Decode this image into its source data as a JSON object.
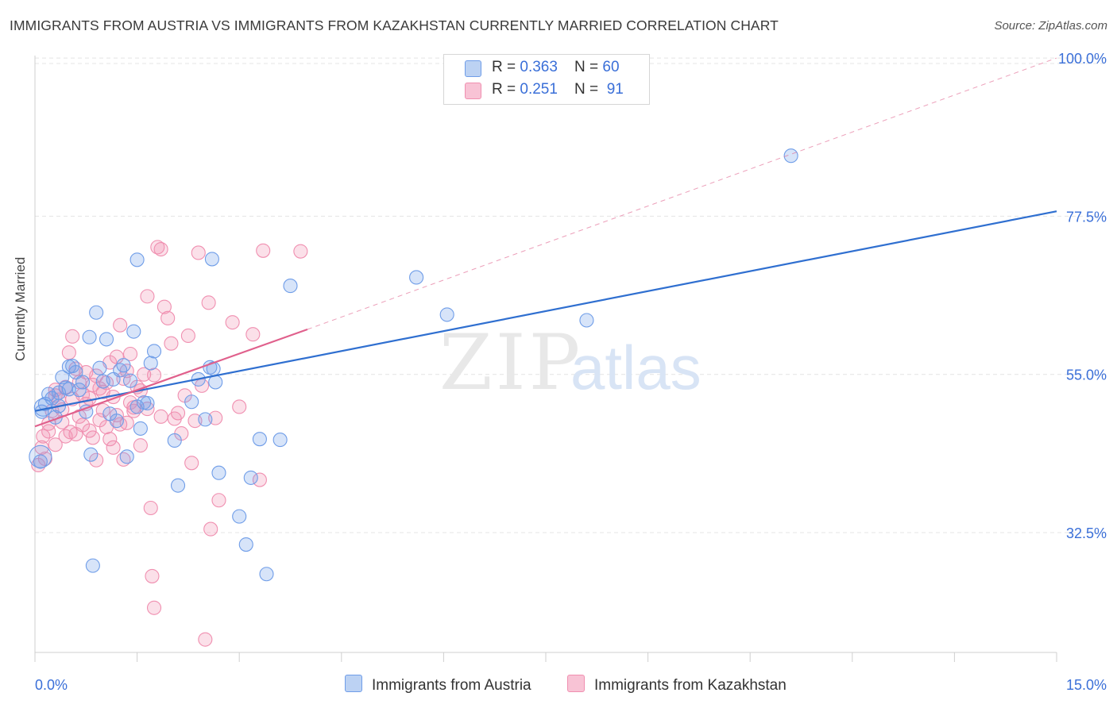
{
  "title": "IMMIGRANTS FROM AUSTRIA VS IMMIGRANTS FROM KAZAKHSTAN CURRENTLY MARRIED CORRELATION CHART",
  "source": "Source: ZipAtlas.com",
  "watermark": {
    "zip": "ZIP",
    "atlas": "atlas"
  },
  "legend": {
    "austria": {
      "r_label": "R = ",
      "r_value": "0.363",
      "n_label": "N = ",
      "n_value": "60"
    },
    "kazakhstan": {
      "r_label": "R = ",
      "r_value": "0.251",
      "n_label": "N = ",
      "n_value": "91"
    }
  },
  "chart_data": {
    "type": "scatter",
    "title": "IMMIGRANTS FROM AUSTRIA VS IMMIGRANTS FROM KAZAKHSTAN CURRENTLY MARRIED CORRELATION CHART",
    "xlabel": "",
    "ylabel": "Currently Married",
    "xlim": [
      0,
      15
    ],
    "ylim": [
      13,
      102
    ],
    "x_tick_labels": [
      "0.0%",
      "15.0%"
    ],
    "y_ticks": [
      32.5,
      55.0,
      77.5,
      100.0
    ],
    "y_tick_labels": [
      "32.5%",
      "55.0%",
      "77.5%",
      "100.0%"
    ],
    "grid": true,
    "legend_position": "top-center",
    "colors": {
      "austria": "#6f9de8",
      "kazakhstan": "#f08fb0",
      "austria_line": "#2f6fd0",
      "kazakhstan_line": "#e0608c"
    },
    "series": [
      {
        "name": "Immigrants from Austria",
        "color": "#6f9de8",
        "points": [
          [
            0.08,
            42.6
          ],
          [
            0.1,
            49.7
          ],
          [
            0.15,
            50.8
          ],
          [
            0.2,
            52.2
          ],
          [
            0.25,
            51.6
          ],
          [
            0.3,
            48.9
          ],
          [
            0.35,
            52.4
          ],
          [
            0.4,
            54.6
          ],
          [
            0.45,
            53.1
          ],
          [
            0.5,
            56.1
          ],
          [
            0.55,
            56.2
          ],
          [
            0.6,
            55.3
          ],
          [
            0.65,
            52.8
          ],
          [
            0.7,
            53.9
          ],
          [
            0.75,
            49.7
          ],
          [
            0.8,
            60.3
          ],
          [
            0.82,
            43.6
          ],
          [
            0.9,
            63.8
          ],
          [
            0.95,
            55.9
          ],
          [
            1.05,
            60.0
          ],
          [
            1.1,
            49.4
          ],
          [
            1.15,
            54.3
          ],
          [
            1.2,
            48.4
          ],
          [
            1.25,
            55.6
          ],
          [
            1.3,
            56.3
          ],
          [
            1.35,
            43.3
          ],
          [
            1.4,
            54.1
          ],
          [
            1.45,
            61.1
          ],
          [
            1.5,
            71.3
          ],
          [
            1.55,
            47.3
          ],
          [
            1.6,
            51.0
          ],
          [
            1.65,
            50.9
          ],
          [
            1.7,
            56.6
          ],
          [
            1.75,
            58.3
          ],
          [
            2.05,
            45.6
          ],
          [
            2.1,
            39.2
          ],
          [
            2.3,
            51.1
          ],
          [
            2.4,
            54.3
          ],
          [
            2.5,
            48.6
          ],
          [
            2.57,
            56.0
          ],
          [
            2.6,
            71.4
          ],
          [
            2.62,
            55.8
          ],
          [
            2.65,
            53.9
          ],
          [
            2.7,
            41.0
          ],
          [
            3.0,
            34.8
          ],
          [
            3.1,
            30.8
          ],
          [
            3.17,
            40.3
          ],
          [
            3.3,
            45.8
          ],
          [
            3.4,
            26.6
          ],
          [
            3.6,
            45.7
          ],
          [
            3.75,
            67.6
          ],
          [
            5.6,
            68.8
          ],
          [
            6.05,
            63.5
          ],
          [
            8.1,
            62.7
          ],
          [
            11.1,
            86.1
          ],
          [
            0.85,
            27.8
          ],
          [
            0.35,
            50.5
          ],
          [
            1.0,
            54.0
          ],
          [
            1.5,
            50.4
          ],
          [
            0.5,
            52.9
          ]
        ]
      },
      {
        "name": "Immigrants from Kazakhstan",
        "color": "#f08fb0",
        "points": [
          [
            0.05,
            42.1
          ],
          [
            0.1,
            44.6
          ],
          [
            0.12,
            46.2
          ],
          [
            0.2,
            46.9
          ],
          [
            0.25,
            49.8
          ],
          [
            0.3,
            52.8
          ],
          [
            0.35,
            51.4
          ],
          [
            0.4,
            48.2
          ],
          [
            0.45,
            46.2
          ],
          [
            0.5,
            58.1
          ],
          [
            0.52,
            46.8
          ],
          [
            0.55,
            60.4
          ],
          [
            0.6,
            46.5
          ],
          [
            0.65,
            53.9
          ],
          [
            0.7,
            47.8
          ],
          [
            0.75,
            55.3
          ],
          [
            0.8,
            51.6
          ],
          [
            0.85,
            53.5
          ],
          [
            0.9,
            42.8
          ],
          [
            0.95,
            53.0
          ],
          [
            1.0,
            49.9
          ],
          [
            1.05,
            47.5
          ],
          [
            1.1,
            56.7
          ],
          [
            1.15,
            44.6
          ],
          [
            1.2,
            57.5
          ],
          [
            1.25,
            62.0
          ],
          [
            1.3,
            42.9
          ],
          [
            1.35,
            48.1
          ],
          [
            1.4,
            57.9
          ],
          [
            1.45,
            50.3
          ],
          [
            1.5,
            53.2
          ],
          [
            1.55,
            44.9
          ],
          [
            1.6,
            55.0
          ],
          [
            1.65,
            66.1
          ],
          [
            1.7,
            36.0
          ],
          [
            1.72,
            26.3
          ],
          [
            1.75,
            21.8
          ],
          [
            1.8,
            73.1
          ],
          [
            1.85,
            72.8
          ],
          [
            1.9,
            64.6
          ],
          [
            1.95,
            63.0
          ],
          [
            2.0,
            59.4
          ],
          [
            2.05,
            48.7
          ],
          [
            2.1,
            49.5
          ],
          [
            2.15,
            46.6
          ],
          [
            2.2,
            52.0
          ],
          [
            2.25,
            60.5
          ],
          [
            2.3,
            42.4
          ],
          [
            2.35,
            48.4
          ],
          [
            2.4,
            72.3
          ],
          [
            2.45,
            53.4
          ],
          [
            2.5,
            17.3
          ],
          [
            2.55,
            65.2
          ],
          [
            2.58,
            33.0
          ],
          [
            2.65,
            48.8
          ],
          [
            2.7,
            37.1
          ],
          [
            2.9,
            62.4
          ],
          [
            3.0,
            50.4
          ],
          [
            3.2,
            60.7
          ],
          [
            3.3,
            40.0
          ],
          [
            3.35,
            72.6
          ],
          [
            3.9,
            72.5
          ],
          [
            0.15,
            43.0
          ],
          [
            0.3,
            45.0
          ],
          [
            0.4,
            50.0
          ],
          [
            0.55,
            51.5
          ],
          [
            0.65,
            49.0
          ],
          [
            0.7,
            52.1
          ],
          [
            0.8,
            47.0
          ],
          [
            0.9,
            54.8
          ],
          [
            1.0,
            52.5
          ],
          [
            1.1,
            45.8
          ],
          [
            1.2,
            49.2
          ],
          [
            1.3,
            54.4
          ],
          [
            1.4,
            51.0
          ],
          [
            0.2,
            48.0
          ],
          [
            0.45,
            53.2
          ],
          [
            0.6,
            55.8
          ],
          [
            0.75,
            50.8
          ],
          [
            0.85,
            46.0
          ],
          [
            0.95,
            48.5
          ],
          [
            1.05,
            53.8
          ],
          [
            1.15,
            51.8
          ],
          [
            1.25,
            47.9
          ],
          [
            1.35,
            55.5
          ],
          [
            1.45,
            49.8
          ],
          [
            1.55,
            52.7
          ],
          [
            1.65,
            50.1
          ],
          [
            1.75,
            54.9
          ],
          [
            1.85,
            49.0
          ],
          [
            0.3,
            52.0
          ]
        ]
      }
    ],
    "trendlines": [
      {
        "series": "Immigrants from Austria",
        "x": [
          0,
          15
        ],
        "y": [
          49.8,
          78.2
        ],
        "style": "solid"
      },
      {
        "series": "Immigrants from Kazakhstan",
        "x": [
          0,
          4.0
        ],
        "y": [
          47.6,
          61.4
        ],
        "style": "solid"
      },
      {
        "series": "Immigrants from Kazakhstan",
        "x": [
          4.0,
          15
        ],
        "y": [
          61.4,
          100.0
        ],
        "style": "dashed"
      }
    ]
  },
  "bottom_legend": {
    "austria": "Immigrants from Austria",
    "kazakhstan": "Immigrants from Kazakhstan"
  }
}
